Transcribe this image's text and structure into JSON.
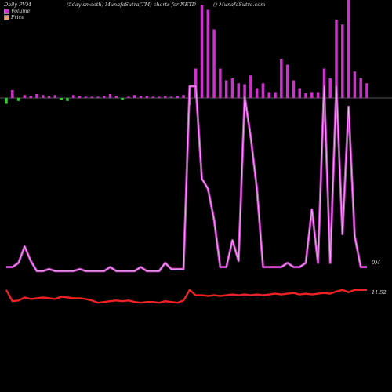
{
  "header": {
    "left": "Daily PVM",
    "center": "(5day smooth) MunafaSutra(TM) charts for NETD",
    "right": "() MunafaSutra.com"
  },
  "legend": [
    {
      "label": "Volume",
      "color": "#cc33cc"
    },
    {
      "label": "Price",
      "color": "#e8a070"
    }
  ],
  "end_labels": {
    "volume": "0M",
    "price": "11.52"
  },
  "colors": {
    "background": "#000000",
    "volume_bar": "#cc33cc",
    "volume_down_bar": "#33cc33",
    "volume_line": "#cc44cc",
    "price_line": "#ee2222",
    "baseline": "#aaaaaa"
  },
  "chart_data": {
    "type": "bar",
    "title": "(5day smooth) MunafaSutra(TM) charts for NETD",
    "x": [
      1,
      2,
      3,
      4,
      5,
      6,
      7,
      8,
      9,
      10,
      11,
      12,
      13,
      14,
      15,
      16,
      17,
      18,
      19,
      20,
      21,
      22,
      23,
      24,
      25,
      26,
      27,
      28,
      29,
      30,
      31,
      32,
      33,
      34,
      35,
      36,
      37,
      38,
      39,
      40,
      41,
      42,
      43,
      44,
      45,
      46,
      47,
      48,
      49,
      50,
      51,
      52,
      53,
      54,
      55,
      56,
      57,
      58,
      59,
      60
    ],
    "series": [
      {
        "name": "Volume",
        "kind": "bar",
        "values": [
          10,
          8,
          5,
          3,
          2,
          4,
          3,
          2,
          3,
          2,
          5,
          3,
          2,
          1,
          1,
          1,
          2,
          4,
          2,
          2,
          1,
          3,
          2,
          2,
          1,
          1,
          2,
          1,
          2,
          3,
          12,
          30,
          95,
          90,
          70,
          30,
          18,
          20,
          15,
          14,
          23,
          10,
          15,
          6,
          6,
          40,
          34,
          18,
          10,
          5,
          6,
          6,
          30,
          20,
          80,
          75,
          100,
          27,
          20,
          15
        ],
        "down": [
          1,
          0,
          1,
          0,
          0,
          0,
          0,
          0,
          0,
          1,
          1,
          0,
          0,
          0,
          0,
          0,
          0,
          0,
          0,
          1,
          0,
          0,
          0,
          0,
          0,
          0,
          0,
          0,
          0,
          0,
          1,
          0,
          0,
          0,
          0,
          0,
          0,
          0,
          0,
          0,
          0,
          0,
          0,
          0,
          0,
          0,
          0,
          0,
          0,
          0,
          0,
          0,
          1,
          1,
          1,
          0,
          0,
          0,
          0,
          0
        ]
      },
      {
        "name": "Volume",
        "kind": "line",
        "values": [
          12,
          12,
          14,
          22,
          15,
          10,
          10,
          11,
          10,
          10,
          10,
          10,
          11,
          10,
          10,
          10,
          10,
          12,
          10,
          10,
          10,
          10,
          12,
          10,
          10,
          10,
          14,
          11,
          11,
          11,
          100,
          100,
          55,
          50,
          35,
          12,
          12,
          25,
          15,
          95,
          75,
          50,
          12,
          12,
          12,
          12,
          14,
          12,
          12,
          14,
          40,
          14,
          100,
          14,
          100,
          28,
          90,
          27,
          12,
          12
        ]
      },
      {
        "name": "Price",
        "kind": "line",
        "values": [
          11.52,
          11.22,
          11.24,
          11.32,
          11.28,
          11.3,
          11.32,
          11.3,
          11.28,
          11.34,
          11.32,
          11.3,
          11.3,
          11.28,
          11.24,
          11.18,
          11.2,
          11.22,
          11.24,
          11.22,
          11.24,
          11.2,
          11.18,
          11.2,
          11.2,
          11.18,
          11.22,
          11.2,
          11.18,
          11.24,
          11.52,
          11.38,
          11.38,
          11.36,
          11.38,
          11.36,
          11.38,
          11.4,
          11.38,
          11.4,
          11.38,
          11.4,
          11.38,
          11.4,
          11.42,
          11.4,
          11.42,
          11.44,
          11.4,
          11.42,
          11.4,
          11.42,
          11.44,
          11.42,
          11.48,
          11.52,
          11.46,
          11.52,
          11.52,
          11.52
        ]
      }
    ],
    "y_labels": [
      "0M",
      "11.52"
    ],
    "grid": false,
    "legend_position": "top-left"
  }
}
